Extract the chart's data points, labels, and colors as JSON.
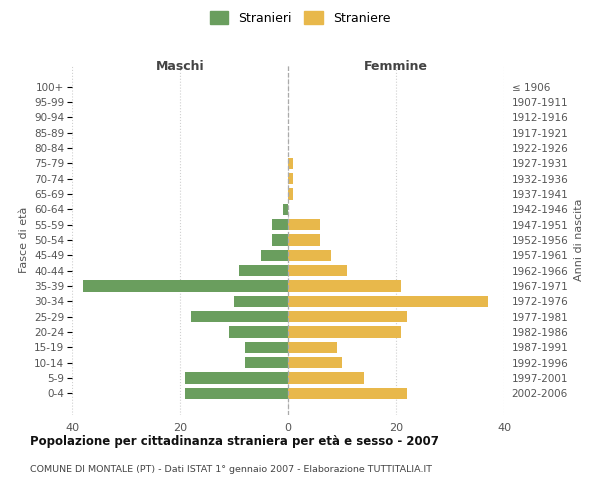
{
  "age_groups": [
    "100+",
    "95-99",
    "90-94",
    "85-89",
    "80-84",
    "75-79",
    "70-74",
    "65-69",
    "60-64",
    "55-59",
    "50-54",
    "45-49",
    "40-44",
    "35-39",
    "30-34",
    "25-29",
    "20-24",
    "15-19",
    "10-14",
    "5-9",
    "0-4"
  ],
  "birth_years": [
    "≤ 1906",
    "1907-1911",
    "1912-1916",
    "1917-1921",
    "1922-1926",
    "1927-1931",
    "1932-1936",
    "1937-1941",
    "1942-1946",
    "1947-1951",
    "1952-1956",
    "1957-1961",
    "1962-1966",
    "1967-1971",
    "1972-1976",
    "1977-1981",
    "1982-1986",
    "1987-1991",
    "1992-1996",
    "1997-2001",
    "2002-2006"
  ],
  "maschi": [
    0,
    0,
    0,
    0,
    0,
    0,
    0,
    0,
    1,
    3,
    3,
    5,
    9,
    38,
    10,
    18,
    11,
    8,
    8,
    19,
    19
  ],
  "femmine": [
    0,
    0,
    0,
    0,
    0,
    1,
    1,
    1,
    0,
    6,
    6,
    8,
    11,
    21,
    37,
    22,
    21,
    9,
    10,
    14,
    22
  ],
  "maschi_color": "#6a9e5e",
  "femmine_color": "#e8b84b",
  "background_color": "#ffffff",
  "grid_color": "#d0d0d0",
  "title": "Popolazione per cittadinanza straniera per età e sesso - 2007",
  "subtitle": "COMUNE DI MONTALE (PT) - Dati ISTAT 1° gennaio 2007 - Elaborazione TUTTITALIA.IT",
  "xlabel_left": "Maschi",
  "xlabel_right": "Femmine",
  "ylabel_left": "Fasce di età",
  "ylabel_right": "Anni di nascita",
  "legend_maschi": "Stranieri",
  "legend_femmine": "Straniere",
  "xlim": 40,
  "bar_height": 0.75
}
